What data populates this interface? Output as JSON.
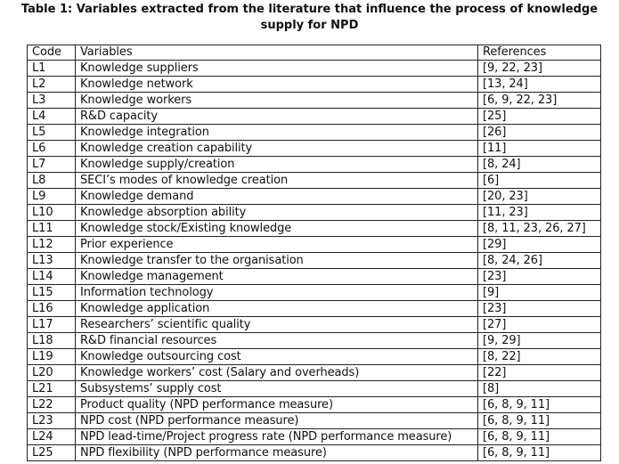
{
  "caption": {
    "line1": "Table 1: Variables extracted from the literature that influence the process of knowledge",
    "line2": "supply for NPD"
  },
  "table": {
    "headers": [
      "Code",
      "Variables",
      "References"
    ],
    "rows": [
      [
        "L1",
        "Knowledge suppliers",
        "[9, 22, 23]"
      ],
      [
        "L2",
        "Knowledge network",
        "[13, 24]"
      ],
      [
        "L3",
        "Knowledge workers",
        "[6, 9, 22, 23]"
      ],
      [
        "L4",
        "R&D capacity",
        "[25]"
      ],
      [
        "L5",
        "Knowledge integration",
        "[26]"
      ],
      [
        "L6",
        "Knowledge creation capability",
        "[11]"
      ],
      [
        "L7",
        "Knowledge supply/creation",
        "[8, 24]"
      ],
      [
        "L8",
        "SECI’s modes of knowledge creation",
        "[6]"
      ],
      [
        "L9",
        "Knowledge demand",
        "[20, 23]"
      ],
      [
        "L10",
        "Knowledge absorption ability",
        "[11, 23]"
      ],
      [
        "L11",
        "Knowledge stock/Existing knowledge",
        "[8, 11, 23, 26, 27]"
      ],
      [
        "L12",
        "Prior experience",
        "[29]"
      ],
      [
        "L13",
        "Knowledge transfer to the organisation",
        "[8, 24, 26]"
      ],
      [
        "L14",
        "Knowledge management",
        "[23]"
      ],
      [
        "L15",
        "Information technology",
        "[9]"
      ],
      [
        "L16",
        "Knowledge application",
        "[23]"
      ],
      [
        "L17",
        "Researchers’ scientific quality",
        "[27]"
      ],
      [
        "L18",
        "R&D financial resources",
        "[9, 29]"
      ],
      [
        "L19",
        "Knowledge outsourcing cost",
        "[8, 22]"
      ],
      [
        "L20",
        "Knowledge workers’ cost (Salary and overheads)",
        "[22]"
      ],
      [
        "L21",
        "Subsystems’ supply cost",
        "[8]"
      ],
      [
        "L22",
        "Product quality (NPD performance measure)",
        "[6, 8, 9, 11]"
      ],
      [
        "L23",
        "NPD cost (NPD performance measure)",
        "[6, 8, 9, 11]"
      ],
      [
        "L24",
        "NPD lead-time/Project progress rate (NPD performance measure)",
        "[6, 8, 9, 11]"
      ],
      [
        "L25",
        "NPD flexibility (NPD performance measure)",
        "[6, 8, 9, 11]"
      ]
    ]
  }
}
